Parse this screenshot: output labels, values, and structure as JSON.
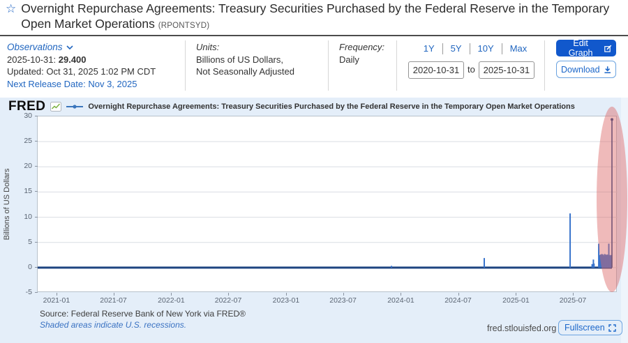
{
  "page": {
    "title": "Overnight Repurchase Agreements: Treasury Securities Purchased by the Federal Reserve in the Temporary Open Market Operations",
    "series_id": "(RPONTSYD)"
  },
  "observations": {
    "label": "Observations",
    "latest_date_label": "2025-10-31:",
    "latest_value": "29.400",
    "updated": "Updated: Oct 31, 2025 1:02 PM CDT",
    "next_release": "Next Release Date: Nov 3, 2025"
  },
  "units": {
    "label": "Units:",
    "line1": "Billions of US Dollars,",
    "line2": "Not Seasonally Adjusted"
  },
  "frequency": {
    "label": "Frequency:",
    "value": "Daily"
  },
  "range": {
    "presets": [
      "1Y",
      "5Y",
      "10Y",
      "Max"
    ],
    "start": "2020-10-31",
    "to_label": "to",
    "end": "2025-10-31"
  },
  "actions": {
    "edit_graph": "Edit Graph",
    "download": "Download"
  },
  "fred_bar": {
    "logo": "FRED",
    "legend": "Overnight Repurchase Agreements: Treasury Securities Purchased by the Federal Reserve in the Temporary Open Market Operations"
  },
  "footer": {
    "source": "Source: Federal Reserve Bank of New York via FRED®",
    "recessions_note": "Shaded areas indicate U.S. recessions.",
    "site": "fred.stlouisfed.org",
    "fullscreen": "Fullscreen"
  },
  "chart_data": {
    "type": "line",
    "title": "Overnight Repurchase Agreements: Treasury Securities Purchased by the Federal Reserve in the Temporary Open Market Operations",
    "ylabel": "Billions of US Dollars",
    "x_range": [
      "2020-10-31",
      "2025-10-31"
    ],
    "ylim": [
      -5,
      30
    ],
    "yticks": [
      30,
      25,
      20,
      15,
      10,
      5,
      0,
      -5
    ],
    "xticks": [
      "2021-01",
      "2021-07",
      "2022-01",
      "2022-07",
      "2023-01",
      "2023-07",
      "2024-01",
      "2024-07",
      "2025-01",
      "2025-07"
    ],
    "grid": "horizontal",
    "legend_position": "top",
    "baseline_value": 0,
    "spikes": [
      [
        "2023-11-30",
        0.35
      ],
      [
        "2024-09-20",
        1.9
      ],
      [
        "2025-06-20",
        10.75
      ],
      [
        "2025-08-29",
        0.7
      ],
      [
        "2025-09-02",
        1.6
      ],
      [
        "2025-09-04",
        0.8
      ],
      [
        "2025-09-19",
        4.75
      ],
      [
        "2025-09-22",
        2.3
      ],
      [
        "2025-09-23",
        2.5
      ],
      [
        "2025-09-24",
        2.2
      ],
      [
        "2025-09-25",
        2.6
      ],
      [
        "2025-09-26",
        2.4
      ],
      [
        "2025-09-29",
        2.7
      ],
      [
        "2025-09-30",
        2.5
      ],
      [
        "2025-10-01",
        2.3
      ],
      [
        "2025-10-02",
        2.6
      ],
      [
        "2025-10-03",
        2.4
      ],
      [
        "2025-10-06",
        2.2
      ],
      [
        "2025-10-07",
        2.5
      ],
      [
        "2025-10-08",
        2.7
      ],
      [
        "2025-10-09",
        2.4
      ],
      [
        "2025-10-10",
        2.6
      ],
      [
        "2025-10-13",
        2.3
      ],
      [
        "2025-10-14",
        2.5
      ],
      [
        "2025-10-15",
        2.4
      ],
      [
        "2025-10-16",
        2.6
      ],
      [
        "2025-10-17",
        2.5
      ],
      [
        "2025-10-21",
        4.75
      ],
      [
        "2025-10-22",
        2.4
      ],
      [
        "2025-10-23",
        2.5
      ],
      [
        "2025-10-24",
        2.3
      ],
      [
        "2025-10-27",
        2.4
      ],
      [
        "2025-10-28",
        2.5
      ],
      [
        "2025-10-29",
        2.4
      ]
    ],
    "latest": {
      "date": "2025-10-31",
      "value": 29.4
    },
    "highlight": {
      "shape": "ellipse",
      "region": "Sep-Oct 2025 spikes incl. latest observation",
      "color": "#db6767",
      "opacity": 0.45
    },
    "colors": {
      "line": "#1d4380",
      "spike": "#3873cc",
      "grid": "#d9dde3"
    }
  }
}
